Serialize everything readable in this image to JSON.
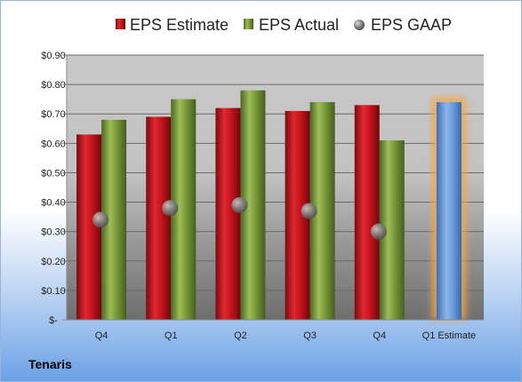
{
  "company": "Tenaris",
  "colors": {
    "estimate": "#c8141b",
    "actual": "#7a9a3a",
    "gaap": "#8a8a8a",
    "forecast": "#5b8fd6",
    "forecast_glow": "#f5a64a"
  },
  "chart_data": {
    "type": "bar",
    "categories": [
      "Q4",
      "Q1",
      "Q2",
      "Q3",
      "Q4",
      "Q1 Estimate"
    ],
    "series": [
      {
        "name": "EPS Estimate",
        "values": [
          0.63,
          0.69,
          0.72,
          0.71,
          0.73,
          null
        ]
      },
      {
        "name": "EPS Actual",
        "values": [
          0.68,
          0.75,
          0.78,
          0.74,
          0.61,
          0.74
        ]
      },
      {
        "name": "EPS GAAP",
        "values": [
          0.34,
          0.38,
          0.39,
          0.37,
          0.3,
          null
        ]
      }
    ],
    "ylim": [
      0,
      0.9
    ],
    "yticks": [
      "$-",
      "$0.10",
      "$0.20",
      "$0.30",
      "$0.40",
      "$0.50",
      "$0.60",
      "$0.70",
      "$0.80",
      "$0.90"
    ],
    "grid": true,
    "legend_position": "top"
  }
}
